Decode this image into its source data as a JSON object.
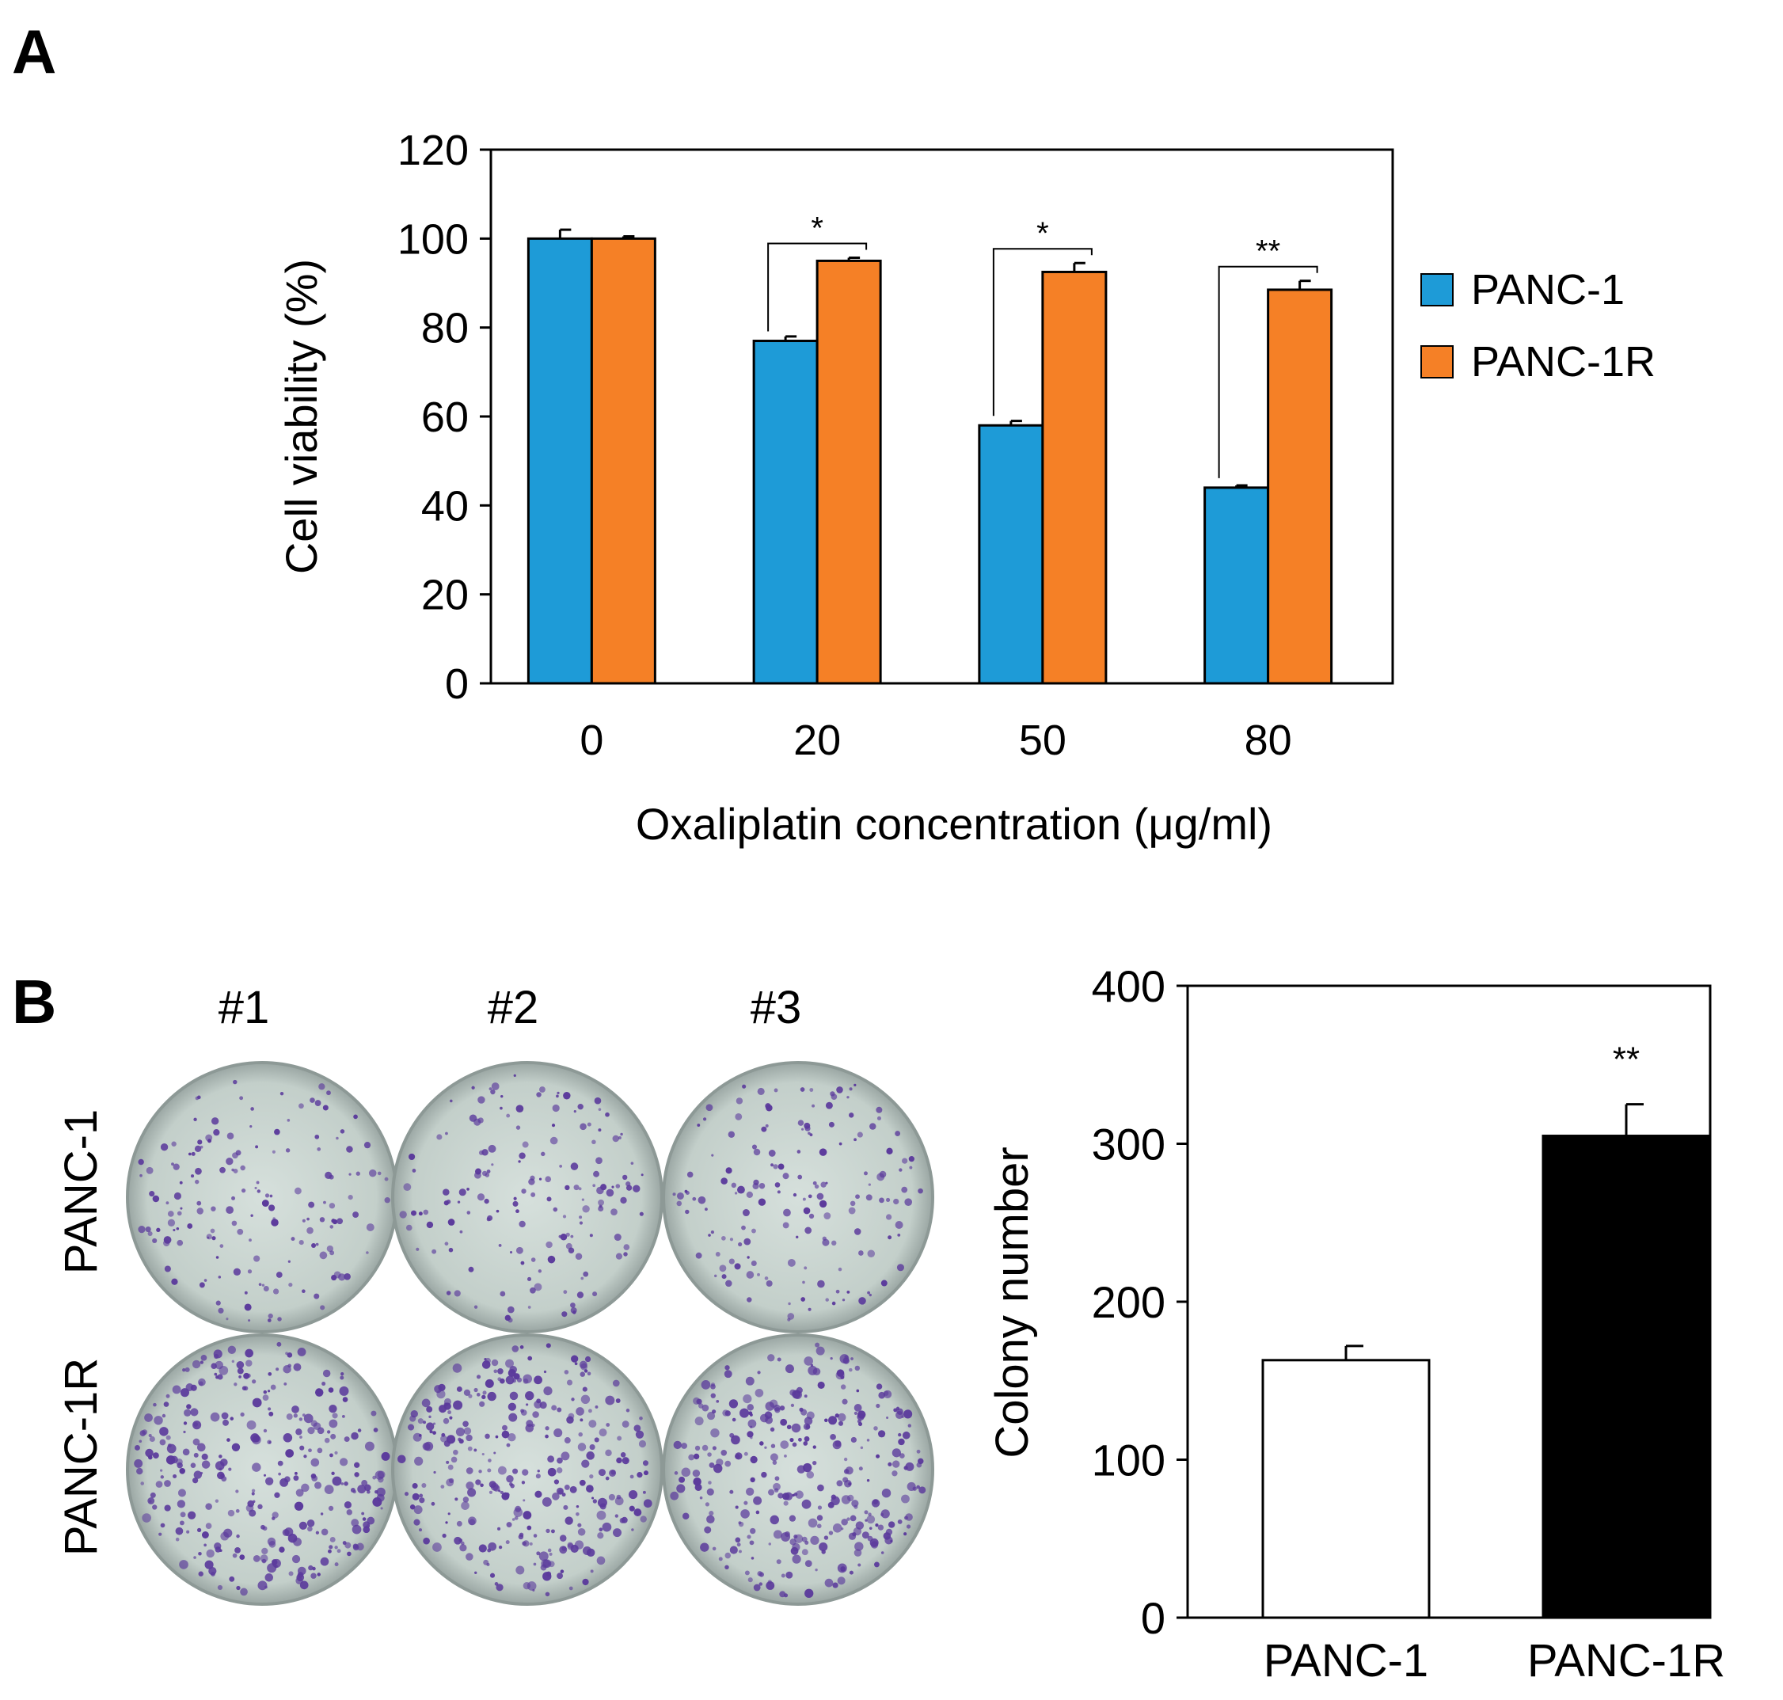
{
  "panels": {
    "a_label": "A",
    "b_label": "B"
  },
  "colors": {
    "panc1": "#1e9bd7",
    "panc1r": "#f58026",
    "dish_bg": "#c9d5d1",
    "colony": "#5b3a9c",
    "white_bar": "#ffffff",
    "black_bar": "#000000"
  },
  "plates": {
    "columns": [
      "#1",
      "#2",
      "#3"
    ],
    "rows": [
      "PANC-1",
      "PANC-1R"
    ]
  },
  "chart_data": [
    {
      "type": "bar",
      "title": "",
      "xlabel": "Oxaliplatin concentration (μg/ml)",
      "ylabel": "Cell viability (%)",
      "ylim": [
        0,
        120
      ],
      "yticks": [
        0,
        20,
        40,
        60,
        80,
        100,
        120
      ],
      "categories": [
        "0",
        "20",
        "50",
        "80"
      ],
      "series": [
        {
          "name": "PANC-1",
          "values": [
            100,
            77,
            58,
            44
          ],
          "errors": [
            2,
            1,
            1,
            0.5
          ]
        },
        {
          "name": "PANC-1R",
          "values": [
            100,
            95,
            92.5,
            88.5
          ],
          "errors": [
            0.5,
            0.7,
            2,
            2
          ]
        }
      ],
      "significance": [
        "",
        "*",
        "*",
        "**"
      ],
      "legend": [
        "PANC-1",
        "PANC-1R"
      ],
      "legend_position": "right"
    },
    {
      "type": "bar",
      "title": "",
      "xlabel": "",
      "ylabel": "Colony number",
      "ylim": [
        0,
        400
      ],
      "yticks": [
        0,
        100,
        200,
        300,
        400
      ],
      "categories": [
        "PANC-1",
        "PANC-1R"
      ],
      "values": [
        163,
        305
      ],
      "errors": [
        9,
        20
      ],
      "significance": [
        "",
        "**"
      ]
    }
  ]
}
